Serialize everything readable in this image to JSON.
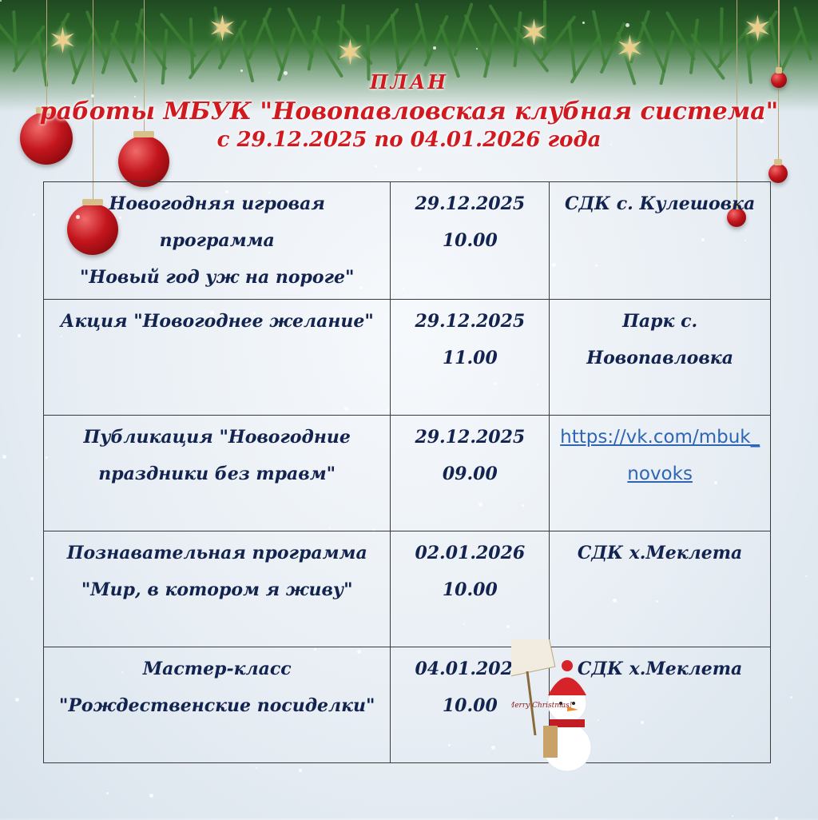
{
  "header": {
    "line1": "ПЛАН",
    "line2": "работы МБУК \"Новопавловская клубная система\"",
    "line3": "с 29.12.2025 по 04.01.2026 года"
  },
  "events": [
    {
      "title": [
        "Новогодняя игровая",
        "программа",
        "\"Новый год уж на пороге\""
      ],
      "date": "29.12.2025",
      "time": "10.00",
      "place": "СДК с. Кулешовка"
    },
    {
      "title": [
        "Акция \"Новогоднее желание\""
      ],
      "date": "29.12.2025",
      "time": "11.00",
      "place": "Парк с. Новопавловка"
    },
    {
      "title": [
        "Публикация \"Новогодние праздники без травм\""
      ],
      "date": "29.12.2025",
      "time": "09.00",
      "place": "https://vk.com/mbuk_novoks"
    },
    {
      "title": [
        "Познавательная программа \"Мир, в котором я живу\""
      ],
      "date": "02.01.2026",
      "time": "10.00",
      "place": "СДК х.Меклета"
    },
    {
      "title": [
        "Мастер-класс",
        "\"Рождественские посиделки\""
      ],
      "date": "04.01.2026",
      "time": "10.00",
      "place": "СДК х.Меклета"
    }
  ],
  "decor": {
    "snowman_sign": "Merry Christmas!"
  },
  "colors": {
    "header": "#d11a1f",
    "text": "#13234f",
    "link": "#2e66b5",
    "garland": "#2f6b2c",
    "ornament": "#c3151c"
  }
}
